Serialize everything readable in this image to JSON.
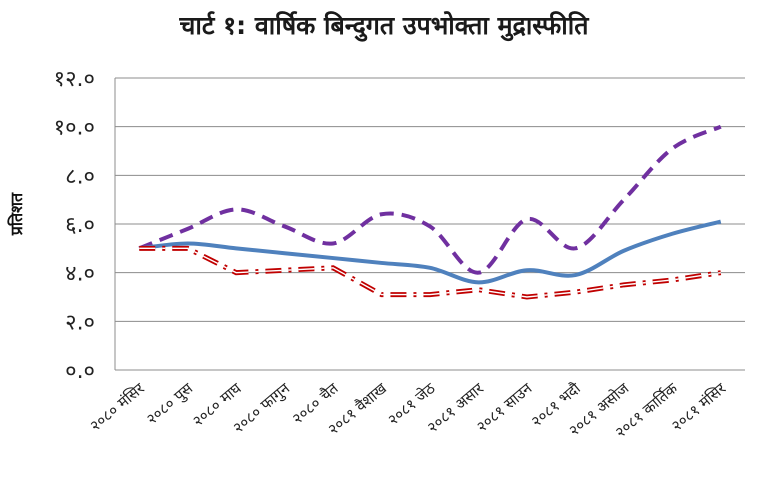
{
  "chart_data": {
    "type": "line",
    "title": "चार्ट १: वार्षिक बिन्दुगत उपभोक्ता मुद्रास्फीति",
    "ylabel": "प्रतिशत",
    "xlabel": "",
    "ylim": [
      0,
      12
    ],
    "y_ticks": [
      0,
      2,
      4,
      6,
      8,
      10,
      12
    ],
    "y_tick_labels": [
      "०.०",
      "२.०",
      "४.०",
      "६.०",
      "८.०",
      "१०.०",
      "१२.०"
    ],
    "grid": true,
    "legend": "none",
    "categories": [
      "२०८० मंसिर",
      "२०८० पुस",
      "२०८० माघ",
      "२०८० फागुन",
      "२०८० चैत",
      "२०८१ वैशाख",
      "२०८१ जेठ",
      "२०८१ असार",
      "२०८१ साउन",
      "२०८१ भदौ",
      "२०८१ असोज",
      "२०८१ कार्तिक",
      "२०८१ मंसिर"
    ],
    "series": [
      {
        "color": "#7030a0",
        "style": "dashed",
        "values": [
          5.0,
          5.8,
          6.6,
          5.9,
          5.2,
          6.4,
          5.9,
          4.0,
          6.2,
          5.0,
          7.0,
          9.1,
          10.0
        ]
      },
      {
        "color": "#4f81bd",
        "style": "solid",
        "values": [
          5.0,
          5.2,
          5.0,
          4.8,
          4.6,
          4.4,
          4.2,
          3.6,
          4.1,
          3.9,
          4.9,
          5.6,
          6.1
        ]
      },
      {
        "color": "#c00000",
        "style": "dashdot-double",
        "values": [
          5.0,
          5.0,
          4.0,
          4.1,
          4.2,
          3.1,
          3.1,
          3.3,
          3.0,
          3.2,
          3.5,
          3.7,
          4.0
        ]
      }
    ]
  }
}
